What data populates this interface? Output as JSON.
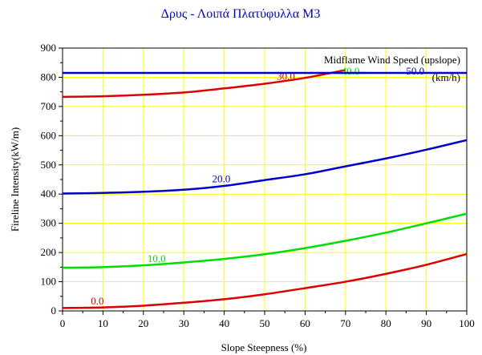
{
  "chart_data": {
    "type": "line",
    "title": "Δρυς - Λοιπά Πλατύφυλλα M3",
    "xlabel": "Slope Steepness (%)",
    "ylabel": "Fireline Intensity(kW/m)",
    "xlim": [
      0,
      100
    ],
    "ylim": [
      0,
      900
    ],
    "x_ticks": [
      0,
      10,
      20,
      30,
      40,
      50,
      60,
      70,
      80,
      90,
      100
    ],
    "y_ticks": [
      0,
      100,
      200,
      300,
      400,
      500,
      600,
      700,
      800,
      900
    ],
    "grid": true,
    "legend_title": "Midflame Wind Speed (upslope)",
    "legend_units": "(km/h)",
    "x": [
      0,
      10,
      20,
      30,
      40,
      50,
      60,
      70,
      80,
      90,
      100
    ],
    "series": [
      {
        "name": "0.0",
        "color": "#dd0000",
        "values": [
          10,
          12,
          18,
          28,
          40,
          57,
          78,
          100,
          127,
          158,
          195
        ],
        "label_x": 7,
        "label_y": 22
      },
      {
        "name": "10.0",
        "color": "#00dd00",
        "values": [
          148,
          150,
          156,
          166,
          178,
          194,
          215,
          240,
          268,
          300,
          333
        ],
        "label_x": 21,
        "label_y": 168
      },
      {
        "name": "20.0",
        "color": "#0000cc",
        "values": [
          402,
          404,
          408,
          415,
          428,
          448,
          468,
          495,
          522,
          552,
          585
        ],
        "label_x": 37,
        "label_y": 440
      },
      {
        "name": "30.0",
        "color": "#dd0000",
        "values": [
          733,
          735,
          740,
          748,
          762,
          778,
          798,
          825
        ],
        "x": [
          0,
          10,
          20,
          30,
          40,
          50,
          60,
          70
        ],
        "label_x": 53,
        "label_y": 792
      },
      {
        "name": "40.0",
        "color": "#00dd00",
        "values": [
          815,
          815
        ],
        "x": [
          68,
          75
        ],
        "label_x": 69,
        "label_y": 810
      },
      {
        "name": "50.0",
        "color": "#0000cc",
        "values": [
          815,
          815
        ],
        "x": [
          0,
          100
        ],
        "label_x": 85,
        "label_y": 810
      }
    ]
  }
}
